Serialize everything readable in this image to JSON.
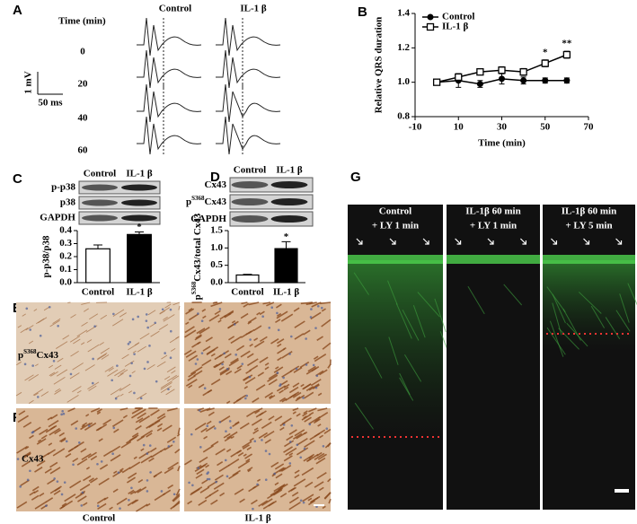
{
  "panel_labels": [
    "A",
    "B",
    "C",
    "D",
    "E",
    "F",
    "G"
  ],
  "panel_a": {
    "time_header": "Time (min)",
    "columns": [
      "Control",
      "IL-1 β"
    ],
    "rows": [
      "0",
      "20",
      "40",
      "60"
    ],
    "scale_voltage": "1 mV",
    "scale_time": "50 ms"
  },
  "panel_c_blot": {
    "columns": [
      "Control",
      "IL-1 β"
    ],
    "rows": [
      "p-p38",
      "p38",
      "GAPDH"
    ]
  },
  "panel_d_blot": {
    "columns": [
      "Control",
      "IL-1 β"
    ],
    "rows": [
      {
        "base": "Cx43"
      },
      {
        "base": "p",
        "sup": "S368",
        "after": "Cx43"
      },
      {
        "base": "GAPDH"
      }
    ]
  },
  "panel_e": {
    "row_label": {
      "base": "p",
      "sup": "S368",
      "after": "Cx43"
    }
  },
  "panel_f": {
    "row_label": "Cx43"
  },
  "panel_ef_columns": [
    "Control",
    "IL-1 β"
  ],
  "panel_g": {
    "columns": [
      [
        "Control",
        "+ LY 1 min"
      ],
      [
        "IL-1β 60 min",
        "+ LY 1 min"
      ],
      [
        "IL-1β 60 min",
        "+ LY 5 min"
      ]
    ]
  },
  "chart_data": [
    {
      "type": "line",
      "xlabel": "Time (min)",
      "ylabel": "Relative QRS duration",
      "x": [
        0,
        10,
        20,
        30,
        40,
        50,
        60
      ],
      "series": [
        {
          "name": "Control",
          "color": "#000000",
          "marker": "circle",
          "values": [
            1.0,
            1.01,
            0.99,
            1.02,
            1.01,
            1.01,
            1.01
          ],
          "errors": [
            0.005,
            0.04,
            0.02,
            0.03,
            0.02,
            0.015,
            0.015
          ],
          "significance": [
            null,
            null,
            null,
            null,
            null,
            null,
            null
          ]
        },
        {
          "name": "IL-1 β",
          "color": "#000000",
          "marker": "square",
          "values": [
            1.0,
            1.03,
            1.06,
            1.07,
            1.06,
            1.11,
            1.16
          ],
          "errors": [
            0.005,
            0.02,
            0.015,
            0.02,
            0.02,
            0.02,
            0.02
          ],
          "significance": [
            null,
            null,
            null,
            null,
            null,
            "*",
            "**"
          ]
        }
      ],
      "xlim": [
        -10,
        70
      ],
      "xticks": [
        -10,
        10,
        30,
        50,
        70
      ],
      "ylim": [
        0.8,
        1.4
      ],
      "yticks": [
        0.8,
        {
          "value": 1.0,
          "label": "1.0"
        },
        1.2,
        1.4
      ],
      "legend": "top-left"
    },
    {
      "type": "bar",
      "ylabel": "p-p38/p38",
      "categories": [
        "Control",
        "IL-1 β"
      ],
      "values": [
        0.26,
        0.37
      ],
      "errors": [
        0.03,
        0.02
      ],
      "colors": [
        "#ffffff",
        "#000000"
      ],
      "significance": [
        null,
        "*"
      ],
      "ylim": [
        0,
        0.4
      ],
      "yticks": [
        {
          "value": 0,
          "label": "0.0"
        },
        0.1,
        0.2,
        0.3,
        0.4
      ]
    },
    {
      "type": "bar",
      "ylabel": {
        "base": "p",
        "sup": "S368",
        "after": "Cx43/total Cx43"
      },
      "categories": [
        "Control",
        "IL-1 β"
      ],
      "values": [
        0.22,
        0.98
      ],
      "errors": [
        0.02,
        0.2
      ],
      "colors": [
        "#ffffff",
        "#000000"
      ],
      "significance": [
        null,
        "*"
      ],
      "ylim": [
        0,
        1.5
      ],
      "yticks": [
        {
          "value": 0,
          "label": "0.0"
        },
        0.5,
        {
          "value": 1.0,
          "label": "1.0"
        },
        1.5
      ]
    }
  ]
}
